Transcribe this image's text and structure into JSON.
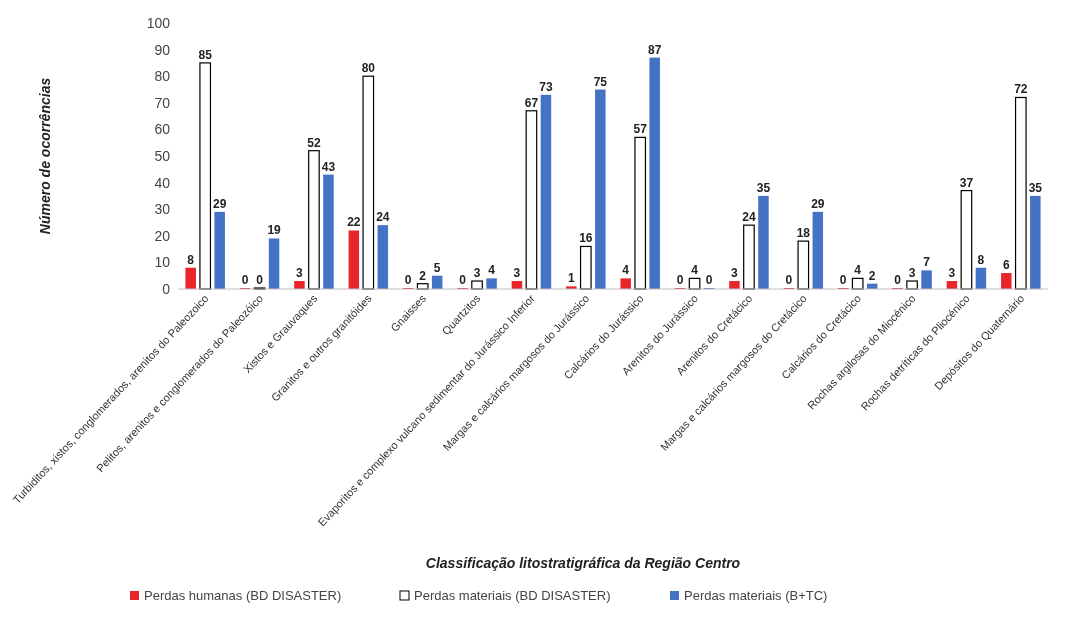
{
  "chart_data": {
    "type": "bar",
    "xlabel": "Classificação litostratigráfica da Região Centro",
    "ylabel": "Número de ocorrências",
    "categories": [
      "Turbiditos, xistos, conglomerados, arenitos do Paleozoico",
      "Pelitos, arenitos e conglomerados do Paleozóico",
      "Xistos e Grauvaques",
      "Granitos e outros granitóides",
      "Gnaisses",
      "Quartzitos",
      "Evaporitos e complexo vulcano sedimentar do Jurássico Inferior",
      "Margas e calcários margosos do Jurássico",
      "Calcários do Jurássico",
      "Arenitos do Jurássico",
      "Arenitos do Cretácico",
      "Margas e calcários margosos do Cretácico",
      "Calcários do Cretácico",
      "Rochas argilosas do Miocénico",
      "Rochas detríticas do Pliocénico",
      "Depósitos do Quaternário"
    ],
    "series": [
      {
        "name": "Perdas humanas (BD DISASTER)",
        "color": "#e8262a",
        "values": [
          8,
          0,
          3,
          22,
          0,
          0,
          3,
          1,
          4,
          0,
          3,
          0,
          0,
          0,
          3,
          6
        ]
      },
      {
        "name": "Perdas materiais (BD DISASTER)",
        "color": "#ffffff",
        "values": [
          85,
          0,
          52,
          80,
          2,
          3,
          67,
          16,
          57,
          4,
          24,
          18,
          4,
          3,
          37,
          72
        ]
      },
      {
        "name": "Perdas materiais (B+TC)",
        "color": "#4472c4",
        "values": [
          29,
          19,
          43,
          24,
          5,
          4,
          73,
          75,
          87,
          0,
          35,
          29,
          2,
          7,
          8,
          35
        ]
      }
    ],
    "ylim": [
      0,
      100
    ],
    "yticks": [
      0,
      10,
      20,
      30,
      40,
      50,
      60,
      70,
      80,
      90,
      100
    ],
    "data_labels": true,
    "legend": "bottom",
    "grid": false
  }
}
